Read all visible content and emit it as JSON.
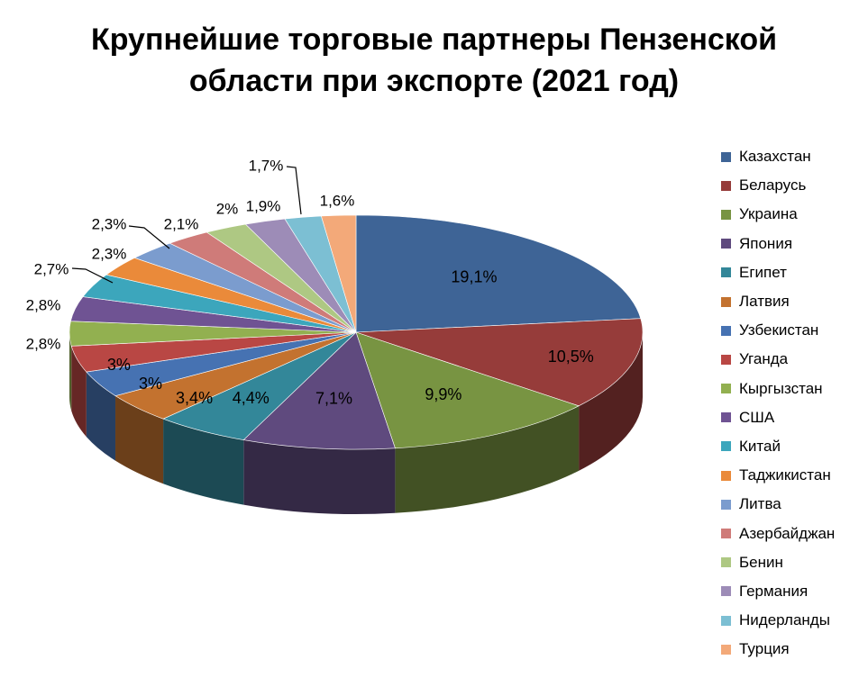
{
  "chart_data": {
    "type": "pie",
    "title_line1": "Крупнейшие торговые партнеры Пензенской",
    "title_line2": "области при экспорте (2021 год)",
    "legend_position": "right",
    "slices": [
      {
        "label": "Казахстан",
        "value": 19.1,
        "text": "19,1%",
        "color": "#3E6496"
      },
      {
        "label": "Беларусь",
        "value": 10.5,
        "text": "10,5%",
        "color": "#963C3A"
      },
      {
        "label": "Украина",
        "value": 9.9,
        "text": "9,9%",
        "color": "#789442"
      },
      {
        "label": "Япония",
        "value": 7.1,
        "text": "7,1%",
        "color": "#5F4A7E"
      },
      {
        "label": "Египет",
        "value": 4.4,
        "text": "4,4%",
        "color": "#338799"
      },
      {
        "label": "Латвия",
        "value": 3.4,
        "text": "3,4%",
        "color": "#C3722F"
      },
      {
        "label": "Узбекистан",
        "value": 3,
        "text": "3%",
        "color": "#4672B2"
      },
      {
        "label": "Уганда",
        "value": 3,
        "text": "3%",
        "color": "#B94744"
      },
      {
        "label": "Кыргызстан",
        "value": 2.8,
        "text": "2,8%",
        "color": "#92B050"
      },
      {
        "label": "США",
        "value": 2.8,
        "text": "2,8%",
        "color": "#6F5393"
      },
      {
        "label": "Китай",
        "value": 2.7,
        "text": "2,7%",
        "color": "#3CA6BC"
      },
      {
        "label": "Таджикистан",
        "value": 2.3,
        "text": "2,3%",
        "color": "#EA8A3A"
      },
      {
        "label": "Литва",
        "value": 2.3,
        "text": "2,3%",
        "color": "#7B9CCE"
      },
      {
        "label": "Азербайджан",
        "value": 2.1,
        "text": "2,1%",
        "color": "#CF7B79"
      },
      {
        "label": "Бенин",
        "value": 2,
        "text": "2%",
        "color": "#AEC883"
      },
      {
        "label": "Германия",
        "value": 1.9,
        "text": "1,9%",
        "color": "#9D8CB7"
      },
      {
        "label": "Нидерланды",
        "value": 1.7,
        "text": "1,7%",
        "color": "#7CBFD3"
      },
      {
        "label": "Турция",
        "value": 1.6,
        "text": "1,6%",
        "color": "#F3A979"
      }
    ]
  }
}
